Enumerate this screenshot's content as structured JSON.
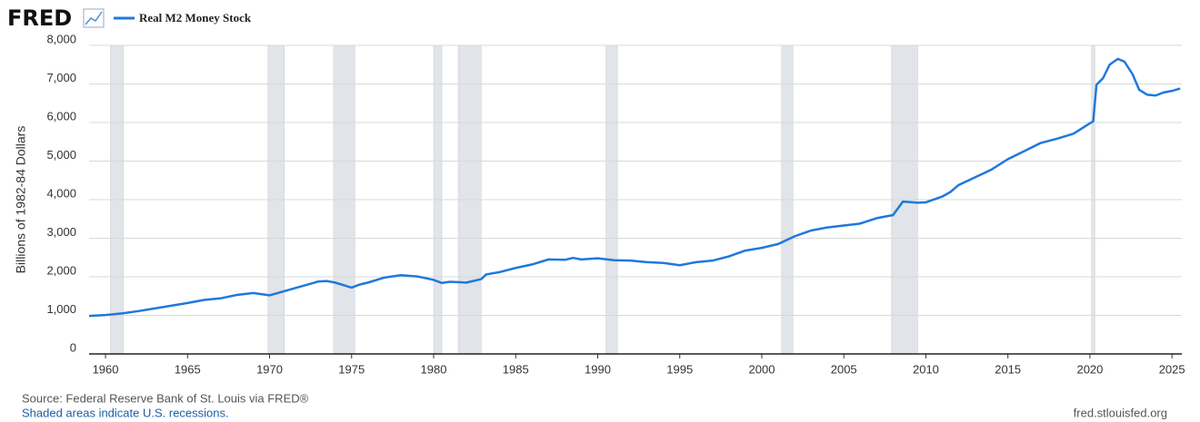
{
  "chart_data": {
    "type": "line",
    "logo": "FRED",
    "y_label": "Billions of 1982-84 Dollars",
    "source": "Source: Federal Reserve Bank of St. Louis via FRED®",
    "note": "Shaded areas indicate U.S. recessions.",
    "url": "fred.stlouisfed.org",
    "xlim": [
      1959,
      2025.6
    ],
    "xticks": [
      1960,
      1965,
      1970,
      1975,
      1980,
      1985,
      1990,
      1995,
      2000,
      2005,
      2010,
      2015,
      2020,
      2025
    ],
    "ylim": [
      0,
      8000
    ],
    "yticks": [
      0,
      {
        "value": 1000,
        "label": "1,000"
      },
      {
        "value": 2000,
        "label": "2,000"
      },
      {
        "value": 3000,
        "label": "3,000"
      },
      {
        "value": 4000,
        "label": "4,000"
      },
      {
        "value": 5000,
        "label": "5,000"
      },
      {
        "value": 6000,
        "label": "6,000"
      },
      {
        "value": 7000,
        "label": "7,000"
      },
      {
        "value": 8000,
        "label": "8,000"
      }
    ],
    "grid": true,
    "recession_color": "#e1e4e8",
    "recessions": [
      [
        1960.3,
        1961.1
      ],
      [
        1969.9,
        1970.9
      ],
      [
        1973.9,
        1975.2
      ],
      [
        1980.0,
        1980.5
      ],
      [
        1981.5,
        1982.9
      ],
      [
        1990.5,
        1991.2
      ],
      [
        2001.2,
        2001.9
      ],
      [
        2007.9,
        2009.5
      ],
      [
        2020.1,
        2020.3
      ]
    ],
    "x": [
      1959,
      1960,
      1961,
      1962,
      1963,
      1964,
      1965,
      1966,
      1967,
      1968,
      1969,
      1970,
      1971,
      1972,
      1973,
      1973.5,
      1974,
      1975,
      1975.5,
      1976,
      1977,
      1978,
      1979,
      1980,
      1980.5,
      1981,
      1982,
      1982.9,
      1983.2,
      1984,
      1985,
      1986,
      1987,
      1988,
      1988.5,
      1989,
      1990,
      1991,
      1992,
      1993,
      1994,
      1995,
      1996,
      1997,
      1998,
      1999,
      2000,
      2001,
      2002,
      2003,
      2004,
      2005,
      2006,
      2007,
      2008,
      2008.6,
      2009.5,
      2010,
      2011,
      2011.5,
      2012,
      2013,
      2014,
      2015,
      2016,
      2017,
      2018,
      2019,
      2020,
      2020.2,
      2020.4,
      2020.8,
      2021.2,
      2021.7,
      2022.1,
      2022.6,
      2023,
      2023.5,
      2024,
      2024.5,
      2025,
      2025.5
    ],
    "series": [
      {
        "name": "Real M2 Money Stock",
        "color": "#1f78dc",
        "values": [
          985,
          1010,
          1050,
          1110,
          1180,
          1250,
          1320,
          1400,
          1440,
          1530,
          1580,
          1520,
          1640,
          1760,
          1880,
          1890,
          1850,
          1720,
          1800,
          1850,
          1980,
          2040,
          2010,
          1920,
          1840,
          1870,
          1850,
          1940,
          2060,
          2120,
          2230,
          2320,
          2450,
          2440,
          2490,
          2450,
          2480,
          2430,
          2420,
          2380,
          2360,
          2300,
          2380,
          2420,
          2530,
          2680,
          2750,
          2850,
          3050,
          3200,
          3280,
          3330,
          3380,
          3520,
          3600,
          3950,
          3920,
          3930,
          4080,
          4200,
          4380,
          4580,
          4780,
          5050,
          5260,
          5470,
          5580,
          5710,
          5980,
          6030,
          6980,
          7150,
          7500,
          7650,
          7580,
          7250,
          6850,
          6720,
          6700,
          6780,
          6820,
          6880
        ]
      }
    ]
  }
}
